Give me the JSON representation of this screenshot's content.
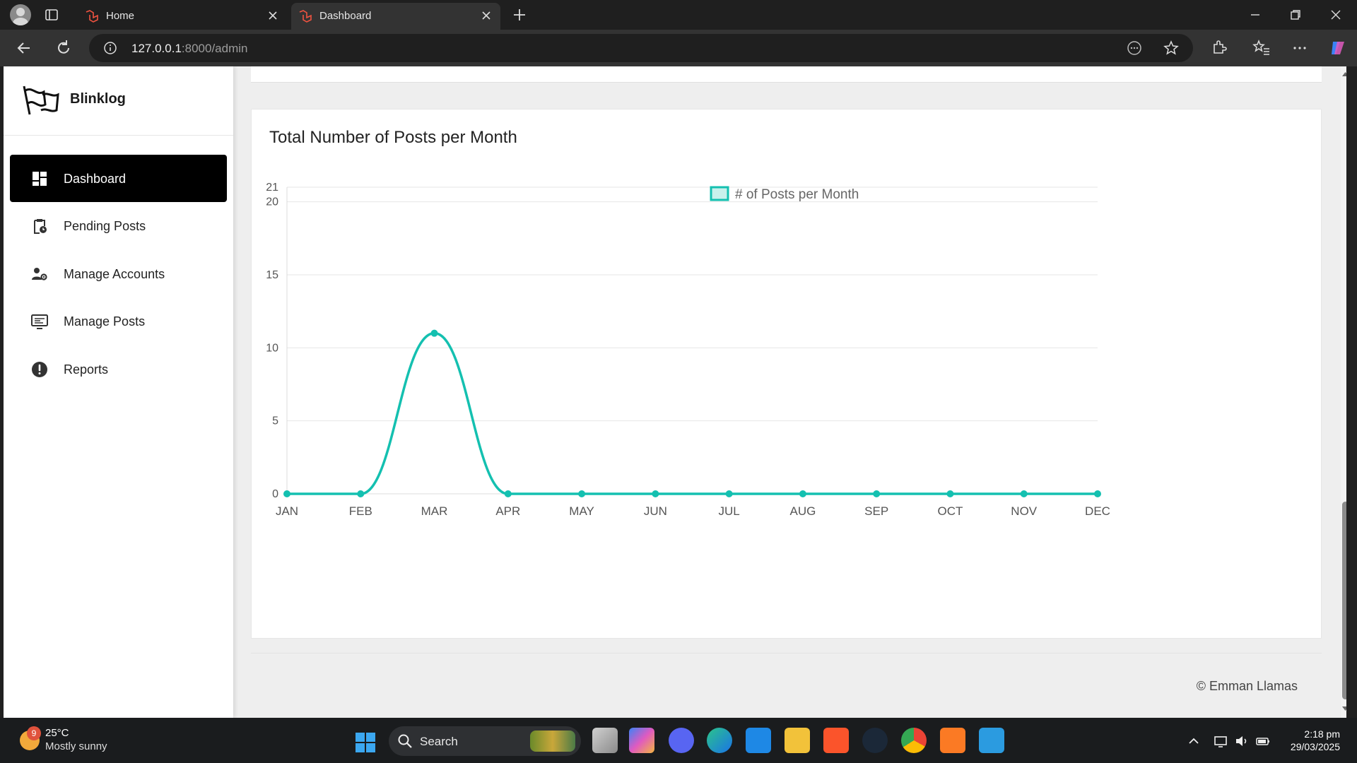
{
  "browser": {
    "tabs": [
      {
        "title": "Home",
        "active": false
      },
      {
        "title": "Dashboard",
        "active": true
      }
    ],
    "address": {
      "host": "127.0.0.1",
      "path": ":8000/admin"
    }
  },
  "sidebar": {
    "brand": "Blinklog",
    "items": [
      {
        "label": "Dashboard",
        "icon": "dashboard-icon",
        "active": true
      },
      {
        "label": "Pending Posts",
        "icon": "clipboard-clock-icon",
        "active": false
      },
      {
        "label": "Manage Accounts",
        "icon": "user-gear-icon",
        "active": false
      },
      {
        "label": "Manage Posts",
        "icon": "monitor-list-icon",
        "active": false
      },
      {
        "label": "Reports",
        "icon": "alert-icon",
        "active": false
      }
    ]
  },
  "chart_data": {
    "type": "line",
    "title": "Total Number of Posts per Month",
    "categories": [
      "JAN",
      "FEB",
      "MAR",
      "APR",
      "MAY",
      "JUN",
      "JUL",
      "AUG",
      "SEP",
      "OCT",
      "NOV",
      "DEC"
    ],
    "series": [
      {
        "name": "# of Posts per Month",
        "values": [
          0,
          0,
          11,
          0,
          0,
          0,
          0,
          0,
          0,
          0,
          0,
          0
        ],
        "color": "#14c0b0"
      }
    ],
    "yticks": [
      "0",
      "5",
      "10",
      "15",
      "20",
      "21"
    ],
    "ylim": [
      0,
      21
    ],
    "grid": true,
    "legend": "top-center"
  },
  "footer": {
    "copyright": "© Emman Llamas"
  },
  "taskbar": {
    "weather": {
      "badge": "9",
      "temp": "25°C",
      "condition": "Mostly sunny"
    },
    "search_label": "Search",
    "time": "2:18 pm",
    "date": "29/03/2025"
  },
  "colors": {
    "accent": "#14c0b0",
    "sidebar_active": "#000000"
  }
}
